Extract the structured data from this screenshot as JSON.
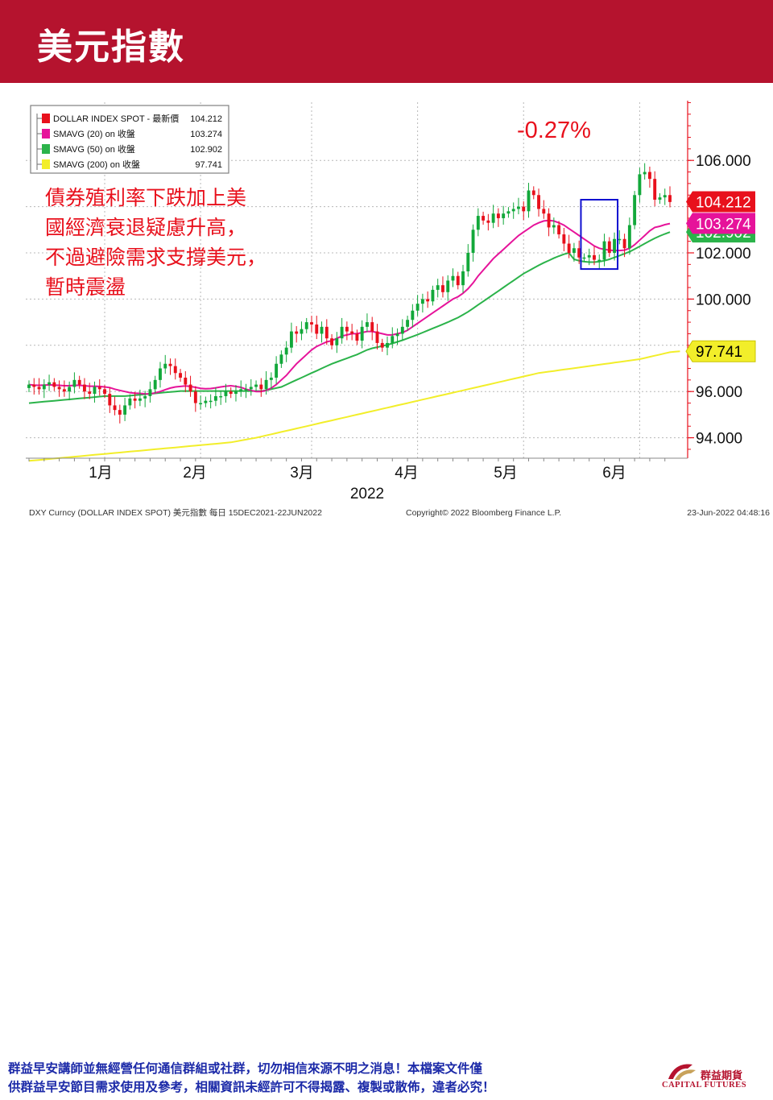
{
  "slide": {
    "title": "美元指數",
    "disclaimer_line1": "群益早安講師並無經營任何通信群組或社群，切勿相信來源不明之消息！本檔案文件僅",
    "disclaimer_line2": "供群益早安節目需求使用及參考，相關資訊未經許可不得揭露、複製或散佈，違者必究！",
    "logo_cn": "群益期貨",
    "logo_en": "CAPITAL FUTURES"
  },
  "colors": {
    "header_red": "#b5132e",
    "price_red": "#e8101c",
    "price_green": "#12a83a",
    "sma20": "#e6139a",
    "sma50": "#2bb34a",
    "sma200": "#f2ee2a",
    "annotation_red": "#e8101c",
    "highlight_box": "#1010d0",
    "disclaimer_blue": "#1c2aa8"
  },
  "chart_data": {
    "type": "candlestick",
    "legend": [
      {
        "label": "DOLLAR INDEX SPOT - 最新價",
        "value": "104.212",
        "color": "#e8101c"
      },
      {
        "label": "SMAVG (20)  on 收盤",
        "value": "103.274",
        "color": "#e6139a"
      },
      {
        "label": "SMAVG (50)  on 收盤",
        "value": "102.902",
        "color": "#2bb34a"
      },
      {
        "label": "SMAVG (200)  on 收盤",
        "value": "97.741",
        "color": "#f2ee2a"
      }
    ],
    "change_label": "-0.27%",
    "commentary": [
      "債券殖利率下跌加上美",
      "國經濟衰退疑慮升高，",
      "不過避險需求支撐美元，",
      "暫時震盪"
    ],
    "y_axis": {
      "ticks": [
        "94.000",
        "96.000",
        "100.000",
        "102.000",
        "106.000"
      ],
      "ylim": [
        93.0,
        108.5
      ]
    },
    "x_axis": {
      "month_labels": [
        "1月",
        "2月",
        "3月",
        "4月",
        "5月",
        "6月"
      ],
      "year_label": "2022"
    },
    "price_tags": [
      {
        "text": "104.212",
        "value": 104.212,
        "bg": "#e8101c",
        "fg": "#ffffff"
      },
      {
        "text": "103.274",
        "value": 103.274,
        "bg": "#e6139a",
        "fg": "#ffffff"
      },
      {
        "text": "102.902",
        "value": 102.902,
        "bg": "#2bb34a",
        "fg": "#ffffff"
      },
      {
        "text": "97.741",
        "value": 97.741,
        "bg": "#f2ee2a",
        "fg": "#000000"
      }
    ],
    "footer_left": "DXY Curncy (DOLLAR INDEX SPOT) 美元指數  每日 15DEC2021-22JUN2022",
    "footer_center": "Copyright© 2022 Bloomberg Finance L.P.",
    "footer_right": "23-Jun-2022 04:48:16",
    "closes": [
      96.3,
      96.2,
      96.1,
      96.3,
      96.4,
      96.2,
      96.1,
      96.0,
      96.2,
      96.5,
      96.3,
      96.0,
      95.9,
      96.2,
      96.1,
      95.9,
      95.4,
      95.2,
      95.0,
      95.4,
      95.7,
      95.6,
      95.7,
      95.8,
      96.1,
      96.5,
      97.0,
      97.2,
      97.1,
      96.8,
      96.6,
      96.3,
      96.0,
      95.5,
      95.5,
      95.6,
      95.6,
      95.8,
      95.8,
      96.0,
      95.9,
      96.0,
      96.1,
      96.1,
      96.2,
      96.3,
      96.1,
      96.5,
      96.6,
      97.2,
      97.6,
      97.9,
      98.6,
      98.5,
      98.7,
      99.0,
      98.9,
      98.5,
      98.8,
      98.3,
      98.0,
      98.3,
      98.8,
      98.6,
      98.5,
      98.2,
      98.8,
      99.0,
      98.6,
      98.1,
      97.9,
      98.1,
      98.4,
      98.5,
      98.8,
      99.1,
      99.5,
      99.8,
      100.0,
      99.9,
      100.4,
      100.6,
      100.3,
      100.8,
      101.0,
      100.6,
      101.2,
      102.0,
      103.0,
      103.6,
      103.4,
      103.3,
      103.7,
      103.5,
      103.7,
      103.8,
      103.9,
      104.0,
      103.8,
      104.7,
      104.5,
      103.9,
      103.7,
      103.1,
      103.2,
      102.8,
      102.4,
      102.0,
      102.2,
      101.8,
      101.8,
      101.9,
      101.7,
      101.7,
      102.5,
      102.0,
      102.6,
      102.6,
      102.2,
      103.2,
      104.5,
      105.4,
      105.5,
      105.2,
      104.3,
      104.4,
      104.5,
      104.2
    ],
    "sma20": [
      96.3,
      96.28,
      96.27,
      96.28,
      96.29,
      96.28,
      96.27,
      96.25,
      96.25,
      96.27,
      96.27,
      96.25,
      96.23,
      96.23,
      96.22,
      96.2,
      96.17,
      96.1,
      96.05,
      96.0,
      95.95,
      95.93,
      95.92,
      95.9,
      95.9,
      95.94,
      96.0,
      96.08,
      96.15,
      96.2,
      96.22,
      96.24,
      96.22,
      96.18,
      96.14,
      96.12,
      96.13,
      96.16,
      96.2,
      96.23,
      96.25,
      96.22,
      96.18,
      96.1,
      96.05,
      96.0,
      96.0,
      96.05,
      96.15,
      96.3,
      96.5,
      96.7,
      96.95,
      97.2,
      97.4,
      97.6,
      97.8,
      97.95,
      98.05,
      98.15,
      98.2,
      98.3,
      98.4,
      98.45,
      98.5,
      98.5,
      98.55,
      98.6,
      98.6,
      98.55,
      98.5,
      98.45,
      98.45,
      98.5,
      98.55,
      98.65,
      98.8,
      98.95,
      99.1,
      99.25,
      99.4,
      99.55,
      99.7,
      99.85,
      100.0,
      100.1,
      100.25,
      100.45,
      100.7,
      101.0,
      101.25,
      101.5,
      101.75,
      101.95,
      102.15,
      102.35,
      102.55,
      102.75,
      102.9,
      103.05,
      103.2,
      103.3,
      103.38,
      103.4,
      103.38,
      103.3,
      103.2,
      103.05,
      102.9,
      102.75,
      102.6,
      102.45,
      102.3,
      102.2,
      102.15,
      102.12,
      102.1,
      102.1,
      102.12,
      102.2,
      102.35,
      102.55,
      102.75,
      102.95,
      103.1,
      103.15,
      103.22,
      103.27
    ],
    "sma50": [
      95.5,
      95.52,
      95.54,
      95.56,
      95.58,
      95.6,
      95.62,
      95.64,
      95.66,
      95.68,
      95.7,
      95.72,
      95.74,
      95.76,
      95.78,
      95.8,
      95.8,
      95.8,
      95.8,
      95.8,
      95.82,
      95.84,
      95.86,
      95.88,
      95.9,
      95.92,
      95.94,
      95.96,
      95.98,
      96.0,
      96.02,
      96.02,
      96.02,
      96.02,
      96.02,
      96.02,
      96.02,
      96.02,
      96.02,
      96.02,
      96.02,
      96.02,
      96.02,
      96.02,
      96.02,
      96.02,
      96.02,
      96.05,
      96.1,
      96.15,
      96.2,
      96.3,
      96.4,
      96.5,
      96.6,
      96.7,
      96.8,
      96.9,
      97.0,
      97.1,
      97.2,
      97.28,
      97.36,
      97.44,
      97.52,
      97.6,
      97.7,
      97.8,
      97.87,
      97.92,
      97.97,
      98.02,
      98.08,
      98.15,
      98.22,
      98.3,
      98.38,
      98.46,
      98.55,
      98.64,
      98.73,
      98.82,
      98.91,
      99.0,
      99.1,
      99.2,
      99.32,
      99.45,
      99.6,
      99.75,
      99.9,
      100.05,
      100.2,
      100.35,
      100.5,
      100.65,
      100.8,
      100.95,
      101.1,
      101.22,
      101.34,
      101.46,
      101.57,
      101.67,
      101.77,
      101.86,
      101.94,
      102.0,
      101.72,
      101.66,
      101.62,
      101.6,
      101.6,
      101.62,
      101.66,
      101.72,
      101.8,
      101.88,
      101.96,
      102.05,
      102.16,
      102.28,
      102.4,
      102.52,
      102.63,
      102.73,
      102.82,
      102.9
    ],
    "sma200": [
      93.0,
      93.02,
      93.04,
      93.06,
      93.08,
      93.1,
      93.12,
      93.14,
      93.16,
      93.18,
      93.2,
      93.22,
      93.24,
      93.26,
      93.28,
      93.3,
      93.32,
      93.34,
      93.36,
      93.38,
      93.4,
      93.42,
      93.44,
      93.46,
      93.48,
      93.5,
      93.52,
      93.54,
      93.56,
      93.58,
      93.6,
      93.62,
      93.64,
      93.66,
      93.68,
      93.7,
      93.72,
      93.74,
      93.76,
      93.78,
      93.8,
      93.84,
      93.88,
      93.92,
      93.96,
      94.0,
      94.05,
      94.1,
      94.15,
      94.2,
      94.25,
      94.3,
      94.35,
      94.4,
      94.45,
      94.5,
      94.55,
      94.6,
      94.65,
      94.7,
      94.75,
      94.8,
      94.85,
      94.9,
      94.95,
      95.0,
      95.05,
      95.1,
      95.15,
      95.2,
      95.25,
      95.3,
      95.35,
      95.4,
      95.45,
      95.5,
      95.55,
      95.6,
      95.65,
      95.7,
      95.75,
      95.8,
      95.85,
      95.9,
      95.95,
      96.0,
      96.05,
      96.1,
      96.15,
      96.2,
      96.25,
      96.3,
      96.35,
      96.4,
      96.45,
      96.5,
      96.55,
      96.6,
      96.65,
      96.7,
      96.75,
      96.8,
      96.83,
      96.86,
      96.89,
      96.92,
      96.95,
      96.98,
      97.01,
      97.04,
      97.07,
      97.1,
      97.13,
      97.16,
      97.19,
      97.22,
      97.25,
      97.28,
      97.31,
      97.34,
      97.37,
      97.4,
      97.45,
      97.5,
      97.55,
      97.6,
      97.65,
      97.7,
      97.72,
      97.74
    ]
  }
}
